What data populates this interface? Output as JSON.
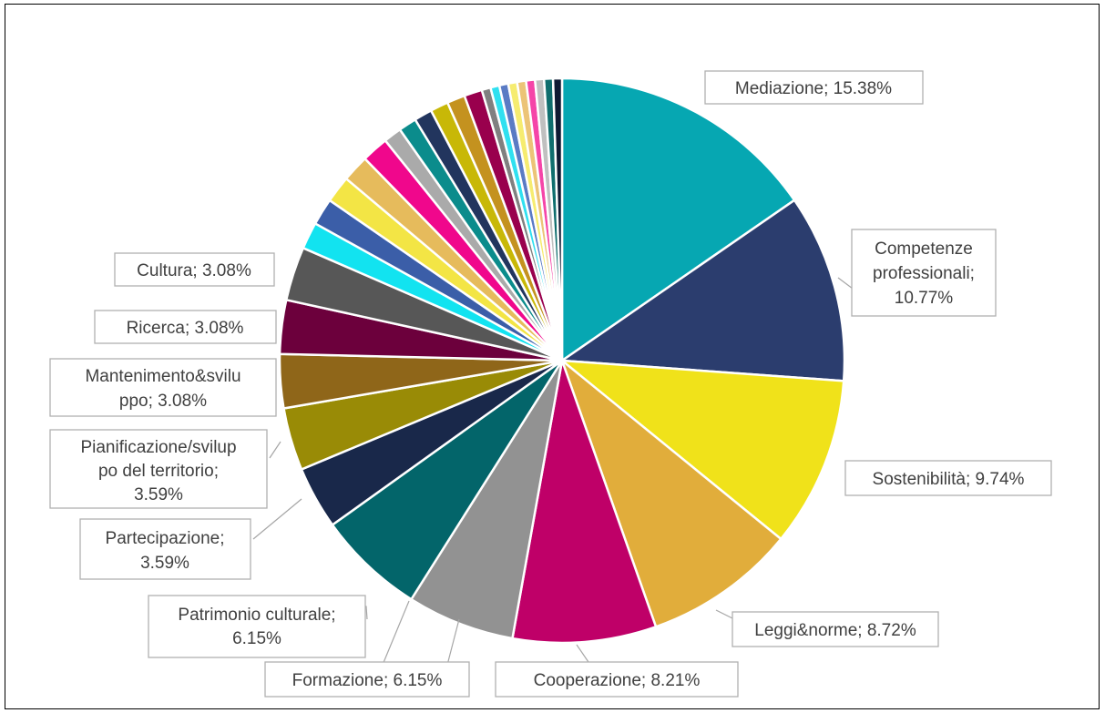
{
  "chart_data": {
    "type": "pie",
    "title": "",
    "start_angle_deg": 0,
    "direction": "clockwise",
    "slices": [
      {
        "label": "Mediazione; 15.38%",
        "value": 15.38,
        "color": "#06a7b2"
      },
      {
        "label": "Competenze professionali; 10.77%",
        "value": 10.77,
        "color": "#2b3d6e"
      },
      {
        "label": "Sostenibilità; 9.74%",
        "value": 9.74,
        "color": "#f0e21a"
      },
      {
        "label": "Leggi&norme; 8.72%",
        "value": 8.72,
        "color": "#e1ad3b"
      },
      {
        "label": "Cooperazione; 8.21%",
        "value": 8.21,
        "color": "#bf0068"
      },
      {
        "label": "Formazione; 6.15%",
        "value": 6.15,
        "color": "#929292"
      },
      {
        "label": "Patrimonio culturale; 6.15%",
        "value": 6.15,
        "color": "#03656a"
      },
      {
        "label": "Partecipazione; 3.59%",
        "value": 3.59,
        "color": "#19284a"
      },
      {
        "label": "Pianificazione/sviluppo del territorio; 3.59%",
        "value": 3.59,
        "color": "#998b06"
      },
      {
        "label": "Mantenimento&sviluppo; 3.08%",
        "value": 3.08,
        "color": "#8f6619"
      },
      {
        "label": "Ricerca; 3.08%",
        "value": 3.08,
        "color": "#6c003c"
      },
      {
        "label": "Cultura; 3.08%",
        "value": 3.08,
        "color": "#575757"
      },
      {
        "label": "",
        "value": 1.54,
        "color": "#12e3f0"
      },
      {
        "label": "",
        "value": 1.54,
        "color": "#3b5ea8"
      },
      {
        "label": "",
        "value": 1.54,
        "color": "#f3e545"
      },
      {
        "label": "",
        "value": 1.54,
        "color": "#e6bb5c"
      },
      {
        "label": "",
        "value": 1.54,
        "color": "#f0078c"
      },
      {
        "label": "",
        "value": 1.03,
        "color": "#aaaaaa"
      },
      {
        "label": "",
        "value": 1.03,
        "color": "#0b8c8c"
      },
      {
        "label": "",
        "value": 1.03,
        "color": "#22355e"
      },
      {
        "label": "",
        "value": 1.03,
        "color": "#c8b807"
      },
      {
        "label": "",
        "value": 1.03,
        "color": "#c4921f"
      },
      {
        "label": "",
        "value": 1.03,
        "color": "#99004d"
      },
      {
        "label": "",
        "value": 0.51,
        "color": "#808080"
      },
      {
        "label": "",
        "value": 0.51,
        "color": "#30e0f0"
      },
      {
        "label": "",
        "value": 0.51,
        "color": "#5a7bc4"
      },
      {
        "label": "",
        "value": 0.51,
        "color": "#f6ec70"
      },
      {
        "label": "",
        "value": 0.51,
        "color": "#ecc477"
      },
      {
        "label": "",
        "value": 0.51,
        "color": "#f545a8"
      },
      {
        "label": "",
        "value": 0.51,
        "color": "#c0c0c0"
      },
      {
        "label": "",
        "value": 0.51,
        "color": "#0f6e6e"
      },
      {
        "label": "",
        "value": 0.51,
        "color": "#0f1a33"
      }
    ],
    "legend": "none"
  }
}
